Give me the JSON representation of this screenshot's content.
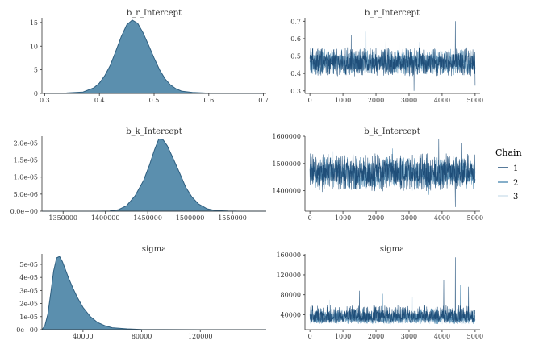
{
  "legend": {
    "title": "Chain",
    "items": [
      {
        "label": "1",
        "color": "#1f4e79"
      },
      {
        "label": "2",
        "color": "#5e94b8"
      },
      {
        "label": "3",
        "color": "#d3e3ee"
      }
    ]
  },
  "colors": {
    "density_fill": "#5b8fae",
    "density_line": "#2f5f80",
    "axis": "#333333"
  },
  "chart_data": [
    {
      "id": "density-b_r",
      "type": "area",
      "title": "b_r_Intercept",
      "xlim": [
        0.295,
        0.705
      ],
      "ylim": [
        0,
        16
      ],
      "xticks": [
        0.3,
        0.4,
        0.5,
        0.6,
        0.7
      ],
      "xtick_labels": [
        "0.3",
        "0.4",
        "0.5",
        "0.6",
        "0.7"
      ],
      "yticks": [
        0,
        5,
        10,
        15
      ],
      "ytick_labels": [
        "0",
        "5",
        "10",
        "15"
      ],
      "x": [
        0.3,
        0.34,
        0.37,
        0.39,
        0.4,
        0.41,
        0.42,
        0.43,
        0.44,
        0.45,
        0.46,
        0.47,
        0.48,
        0.49,
        0.5,
        0.51,
        0.52,
        0.53,
        0.54,
        0.55,
        0.57,
        0.6,
        0.65,
        0.7
      ],
      "y": [
        0,
        0.1,
        0.3,
        1.2,
        2.2,
        3.8,
        6.0,
        8.9,
        12.0,
        14.5,
        15.5,
        14.8,
        12.8,
        10.2,
        7.5,
        5.0,
        3.1,
        1.8,
        1.0,
        0.5,
        0.2,
        0.05,
        0.05,
        0
      ]
    },
    {
      "id": "trace-b_r",
      "type": "line",
      "title": "b_r_Intercept",
      "xlim": [
        -150,
        5150
      ],
      "ylim": [
        0.285,
        0.72
      ],
      "xticks": [
        0,
        1000,
        2000,
        3000,
        4000,
        5000
      ],
      "xtick_labels": [
        "0",
        "1000",
        "2000",
        "3000",
        "4000",
        "5000"
      ],
      "yticks": [
        0.3,
        0.4,
        0.5,
        0.6,
        0.7
      ],
      "ytick_labels": [
        "0.3",
        "0.4",
        "0.5",
        "0.6",
        "0.7"
      ],
      "iterations": 5000,
      "series": [
        {
          "name": "1",
          "center": 0.462,
          "low": 0.38,
          "high": 0.56,
          "spikes": [
            [
              4400,
              0.7
            ],
            [
              3150,
              0.3
            ],
            [
              5000,
              0.33
            ],
            [
              1250,
              0.62
            ]
          ]
        },
        {
          "name": "2",
          "center": 0.46,
          "low": 0.39,
          "high": 0.55,
          "spikes": [
            [
              2300,
              0.6
            ],
            [
              3700,
              0.36
            ]
          ]
        },
        {
          "name": "3",
          "center": 0.46,
          "low": 0.4,
          "high": 0.54,
          "spikes": [
            [
              1700,
              0.64
            ],
            [
              2700,
              0.61
            ],
            [
              3300,
              0.58
            ]
          ]
        }
      ]
    },
    {
      "id": "density-b_k",
      "type": "area",
      "title": "b_k_Intercept",
      "xlim": [
        1325000,
        1590000
      ],
      "ylim": [
        0,
        2.2e-05
      ],
      "xticks": [
        1350000,
        1400000,
        1450000,
        1500000,
        1550000
      ],
      "xtick_labels": [
        "1350000",
        "1400000",
        "1450000",
        "1500000",
        "1550000"
      ],
      "yticks": [
        0,
        5e-06,
        1e-05,
        1.5e-05,
        2e-05
      ],
      "ytick_labels": [
        "0.0e+00",
        "5.0e-06",
        "1.0e-05",
        "1.5e-05",
        "2.0e-05"
      ],
      "x": [
        1325000,
        1390000,
        1405000,
        1415000,
        1425000,
        1435000,
        1445000,
        1452000,
        1458000,
        1463000,
        1468000,
        1473000,
        1480000,
        1488000,
        1495000,
        1502000,
        1510000,
        1520000,
        1530000,
        1545000,
        1560000,
        1590000
      ],
      "y": [
        0,
        0,
        5e-08,
        4e-07,
        1.6e-06,
        4.5e-06,
        9e-06,
        1.35e-05,
        1.8e-05,
        2.12e-05,
        2.1e-05,
        1.92e-05,
        1.55e-05,
        1.1e-05,
        7e-06,
        4.2e-06,
        2.1e-06,
        7e-07,
        2e-07,
        5e-08,
        0,
        0
      ]
    },
    {
      "id": "trace-b_k",
      "type": "line",
      "title": "b_k_Intercept",
      "xlim": [
        -150,
        5150
      ],
      "ylim": [
        1325000,
        1600000
      ],
      "xticks": [
        0,
        1000,
        2000,
        3000,
        4000,
        5000
      ],
      "xtick_labels": [
        "0",
        "1000",
        "2000",
        "3000",
        "4000",
        "5000"
      ],
      "yticks": [
        1400000,
        1500000,
        1600000
      ],
      "ytick_labels": [
        "1400000",
        "1500000",
        "1600000"
      ],
      "iterations": 5000,
      "series": [
        {
          "name": "1",
          "center": 1465000,
          "low": 1395000,
          "high": 1545000,
          "spikes": [
            [
              4400,
              1340000
            ],
            [
              3900,
              1590000
            ],
            [
              1300,
              1570000
            ],
            [
              4600,
              1575000
            ]
          ]
        },
        {
          "name": "2",
          "center": 1465000,
          "low": 1405000,
          "high": 1530000,
          "spikes": [
            [
              2500,
              1555000
            ],
            [
              3600,
              1385000
            ]
          ]
        },
        {
          "name": "3",
          "center": 1465000,
          "low": 1415000,
          "high": 1520000,
          "spikes": [
            [
              700,
              1545000
            ],
            [
              3100,
              1400000
            ]
          ]
        }
      ]
    },
    {
      "id": "density-sigma",
      "type": "area",
      "title": "sigma",
      "xlim": [
        12000,
        165000
      ],
      "ylim": [
        0,
        5.8e-05
      ],
      "xticks": [
        40000,
        80000,
        120000
      ],
      "xtick_labels": [
        "40000",
        "80000",
        "120000"
      ],
      "yticks": [
        0,
        1e-05,
        2e-05,
        3e-05,
        4e-05,
        5e-05
      ],
      "ytick_labels": [
        "0e+00",
        "1e-05",
        "2e-05",
        "3e-05",
        "4e-05",
        "5e-05"
      ],
      "x": [
        12000,
        14000,
        16000,
        18000,
        20000,
        22000,
        24000,
        26000,
        28000,
        30000,
        33000,
        36000,
        40000,
        45000,
        50000,
        55000,
        60000,
        70000,
        80000,
        95000,
        120000,
        165000
      ],
      "y": [
        0,
        3e-06,
        1.2e-05,
        2.8e-05,
        4.5e-05,
        5.5e-05,
        5.6e-05,
        5.2e-05,
        4.6e-05,
        4e-05,
        3.2e-05,
        2.5e-05,
        1.7e-05,
        1e-05,
        5.5e-06,
        3e-06,
        1.5e-06,
        6e-07,
        2e-07,
        5e-08,
        0,
        0
      ]
    },
    {
      "id": "trace-sigma",
      "type": "line",
      "title": "sigma",
      "xlim": [
        -150,
        5150
      ],
      "ylim": [
        10000,
        162000
      ],
      "xticks": [
        0,
        1000,
        2000,
        3000,
        4000,
        5000
      ],
      "xtick_labels": [
        "0",
        "1000",
        "2000",
        "3000",
        "4000",
        "5000"
      ],
      "yticks": [
        40000,
        80000,
        120000,
        160000
      ],
      "ytick_labels": [
        "40000",
        "80000",
        "120000",
        "160000"
      ],
      "iterations": 5000,
      "series": [
        {
          "name": "1",
          "center": 35000,
          "low": 22000,
          "high": 62000,
          "spikes": [
            [
              4400,
              155000
            ],
            [
              3450,
              128000
            ],
            [
              4050,
              110000
            ],
            [
              1500,
              88000
            ],
            [
              4800,
              96000
            ]
          ]
        },
        {
          "name": "2",
          "center": 33000,
          "low": 21000,
          "high": 55000,
          "spikes": [
            [
              4550,
              100000
            ],
            [
              2200,
              82000
            ]
          ]
        },
        {
          "name": "3",
          "center": 31000,
          "low": 20000,
          "high": 50000,
          "spikes": [
            [
              600,
              70000
            ],
            [
              3100,
              76000
            ]
          ]
        }
      ]
    }
  ]
}
